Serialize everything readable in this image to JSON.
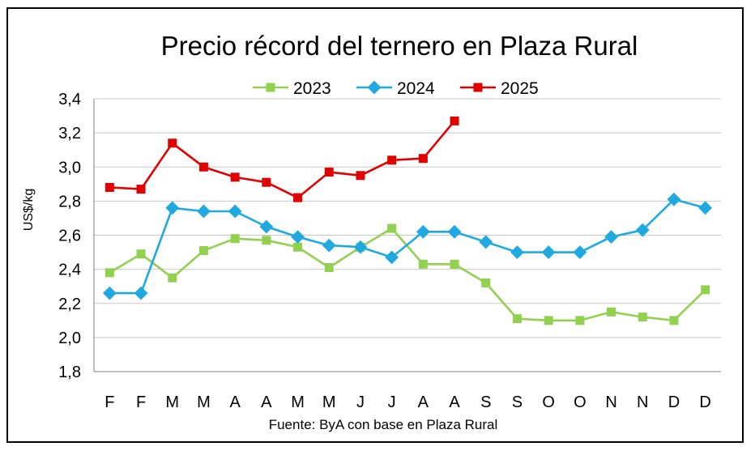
{
  "chart_data": {
    "type": "line",
    "title": "Precio récord del ternero en Plaza Rural",
    "ylabel": "US$/kg",
    "xlabel": "",
    "source": "Fuente: ByA con base en Plaza Rural",
    "ylim": [
      1.8,
      3.4
    ],
    "ytick_step": 0.2,
    "ytick_labels": [
      "1,8",
      "2,0",
      "2,2",
      "2,4",
      "2,6",
      "2,8",
      "3,0",
      "3,2",
      "3,4"
    ],
    "grid": true,
    "legend_position": "top",
    "categories": [
      "F",
      "F",
      "M",
      "M",
      "A",
      "A",
      "M",
      "M",
      "J",
      "J",
      "A",
      "A",
      "S",
      "S",
      "O",
      "O",
      "N",
      "N",
      "D",
      "D"
    ],
    "series": [
      {
        "name": "2023",
        "color": "#92d050",
        "marker": "square",
        "values": [
          2.38,
          2.49,
          2.35,
          2.51,
          2.58,
          2.57,
          2.53,
          2.41,
          2.53,
          2.64,
          2.43,
          2.43,
          2.32,
          2.11,
          2.1,
          2.1,
          2.15,
          2.12,
          2.1,
          2.28
        ]
      },
      {
        "name": "2024",
        "color": "#1fa9e0",
        "marker": "diamond",
        "values": [
          2.26,
          2.26,
          2.76,
          2.74,
          2.74,
          2.65,
          2.59,
          2.54,
          2.53,
          2.47,
          2.62,
          2.62,
          2.56,
          2.5,
          2.5,
          2.5,
          2.59,
          2.63,
          2.81,
          2.76
        ]
      },
      {
        "name": "2025",
        "color": "#e00000",
        "marker": "square",
        "values": [
          2.88,
          2.87,
          3.14,
          3.0,
          2.94,
          2.91,
          2.82,
          2.97,
          2.95,
          3.04,
          3.05,
          3.27,
          null,
          null,
          null,
          null,
          null,
          null,
          null,
          null
        ]
      }
    ]
  }
}
